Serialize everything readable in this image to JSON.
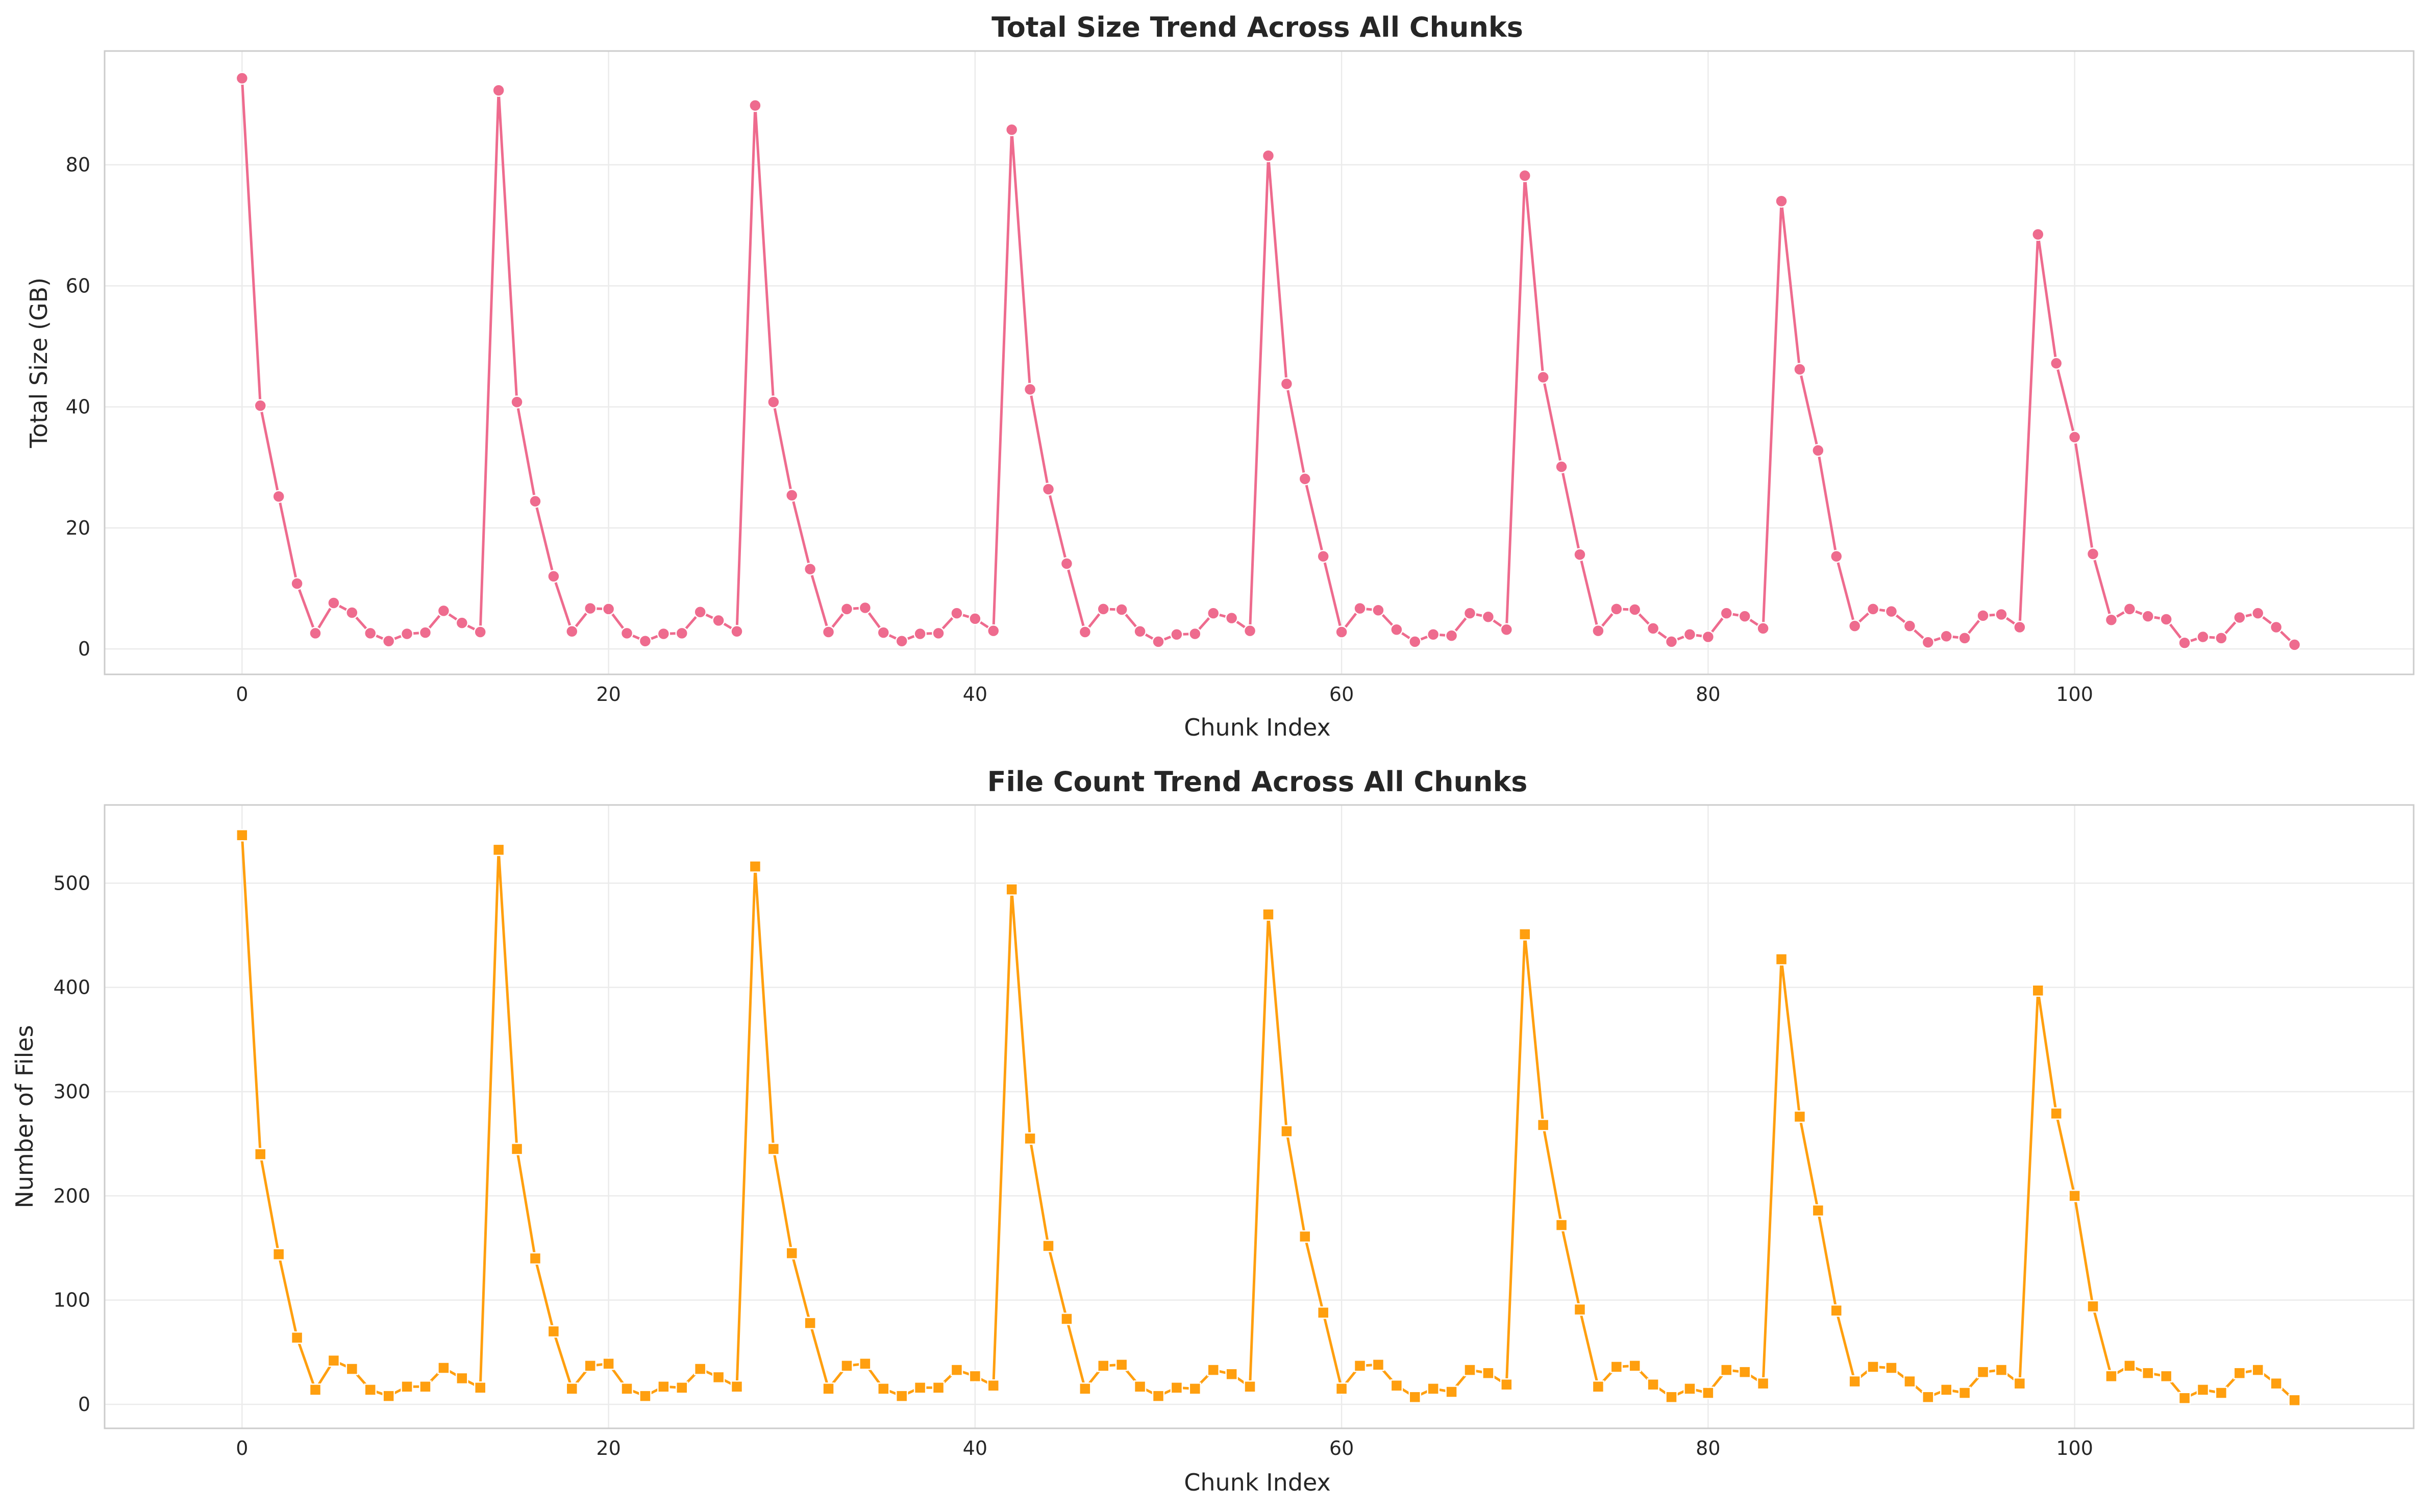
{
  "chart_data": [
    {
      "type": "line",
      "title": "Total Size Trend Across All Chunks",
      "xlabel": "Chunk Index",
      "ylabel": "Total Size (GB)",
      "xlim": [
        -7.5,
        118.5
      ],
      "ylim": [
        -4.2,
        98.8
      ],
      "xticks": [
        0,
        20,
        40,
        60,
        80,
        100
      ],
      "yticks": [
        0,
        20,
        40,
        60,
        80
      ],
      "grid": true,
      "marker": "circle",
      "color": "#ee6b8e",
      "x": [
        0,
        1,
        2,
        3,
        4,
        5,
        6,
        7,
        8,
        9,
        10,
        11,
        12,
        13,
        14,
        15,
        16,
        17,
        18,
        19,
        20,
        21,
        22,
        23,
        24,
        25,
        26,
        27,
        28,
        29,
        30,
        31,
        32,
        33,
        34,
        35,
        36,
        37,
        38,
        39,
        40,
        41,
        42,
        43,
        44,
        45,
        46,
        47,
        48,
        49,
        50,
        51,
        52,
        53,
        54,
        55,
        56,
        57,
        58,
        59,
        60,
        61,
        62,
        63,
        64,
        65,
        66,
        67,
        68,
        69,
        70,
        71,
        72,
        73,
        74,
        75,
        76,
        77,
        78,
        79,
        80,
        81,
        82,
        83,
        84,
        85,
        86,
        87,
        88,
        89,
        90,
        91,
        92,
        93,
        94,
        95,
        96,
        97,
        98,
        99,
        100,
        101,
        102,
        103,
        104,
        105,
        106,
        107,
        108,
        109,
        110,
        111,
        112
      ],
      "values": [
        94.3,
        40.2,
        25.2,
        10.8,
        2.6,
        7.6,
        6.0,
        2.6,
        1.3,
        2.5,
        2.7,
        6.3,
        4.3,
        2.8,
        92.3,
        40.8,
        24.4,
        12.0,
        2.9,
        6.7,
        6.6,
        2.6,
        1.3,
        2.5,
        2.6,
        6.1,
        4.7,
        2.9,
        89.8,
        40.8,
        25.4,
        13.2,
        2.8,
        6.6,
        6.8,
        2.7,
        1.3,
        2.5,
        2.6,
        5.9,
        5.0,
        3.0,
        85.8,
        42.9,
        26.4,
        14.1,
        2.8,
        6.6,
        6.5,
        2.9,
        1.2,
        2.4,
        2.5,
        5.9,
        5.1,
        3.0,
        81.5,
        43.8,
        28.1,
        15.3,
        2.8,
        6.7,
        6.4,
        3.2,
        1.2,
        2.4,
        2.2,
        5.9,
        5.3,
        3.2,
        78.2,
        44.9,
        30.1,
        15.6,
        3.0,
        6.6,
        6.5,
        3.4,
        1.2,
        2.4,
        2.0,
        5.9,
        5.4,
        3.4,
        74.0,
        46.2,
        32.8,
        15.3,
        3.8,
        6.6,
        6.2,
        3.8,
        1.1,
        2.1,
        1.8,
        5.5,
        5.7,
        3.6,
        68.5,
        47.2,
        35.0,
        15.7,
        4.8,
        6.6,
        5.4,
        4.9,
        1.0,
        2.0,
        1.8,
        5.2,
        5.9,
        3.6,
        0.7
      ]
    },
    {
      "type": "line",
      "title": "File Count Trend Across All Chunks",
      "xlabel": "Chunk Index",
      "ylabel": "Number of Files",
      "xlim": [
        -7.5,
        118.5
      ],
      "ylim": [
        -23,
        575
      ],
      "xticks": [
        0,
        20,
        40,
        60,
        80,
        100
      ],
      "yticks": [
        0,
        100,
        200,
        300,
        400,
        500
      ],
      "grid": true,
      "marker": "square",
      "color": "#ff9f0f",
      "x": [
        0,
        1,
        2,
        3,
        4,
        5,
        6,
        7,
        8,
        9,
        10,
        11,
        12,
        13,
        14,
        15,
        16,
        17,
        18,
        19,
        20,
        21,
        22,
        23,
        24,
        25,
        26,
        27,
        28,
        29,
        30,
        31,
        32,
        33,
        34,
        35,
        36,
        37,
        38,
        39,
        40,
        41,
        42,
        43,
        44,
        45,
        46,
        47,
        48,
        49,
        50,
        51,
        52,
        53,
        54,
        55,
        56,
        57,
        58,
        59,
        60,
        61,
        62,
        63,
        64,
        65,
        66,
        67,
        68,
        69,
        70,
        71,
        72,
        73,
        74,
        75,
        76,
        77,
        78,
        79,
        80,
        81,
        82,
        83,
        84,
        85,
        86,
        87,
        88,
        89,
        90,
        91,
        92,
        93,
        94,
        95,
        96,
        97,
        98,
        99,
        100,
        101,
        102,
        103,
        104,
        105,
        106,
        107,
        108,
        109,
        110,
        111,
        112
      ],
      "values": [
        546,
        240,
        144,
        64,
        14,
        42,
        34,
        14,
        8,
        17,
        17,
        35,
        25,
        16,
        532,
        245,
        140,
        70,
        15,
        37,
        39,
        15,
        8,
        17,
        16,
        34,
        26,
        17,
        516,
        245,
        145,
        78,
        15,
        37,
        39,
        15,
        8,
        16,
        16,
        33,
        27,
        18,
        494,
        255,
        152,
        82,
        15,
        37,
        38,
        17,
        8,
        16,
        15,
        33,
        29,
        17,
        470,
        262,
        161,
        88,
        15,
        37,
        38,
        18,
        7,
        15,
        12,
        33,
        30,
        19,
        451,
        268,
        172,
        91,
        17,
        36,
        37,
        19,
        7,
        15,
        11,
        33,
        31,
        20,
        427,
        276,
        186,
        90,
        22,
        36,
        35,
        22,
        7,
        14,
        11,
        31,
        33,
        20,
        397,
        279,
        200,
        94,
        27,
        37,
        30,
        27,
        6,
        14,
        11,
        30,
        33,
        20,
        4
      ]
    }
  ]
}
